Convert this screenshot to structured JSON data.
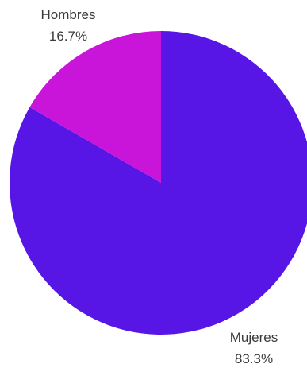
{
  "chart_data": {
    "type": "pie",
    "title": "",
    "slices": [
      {
        "label": "Mujeres",
        "value": 83.3,
        "display": "83.3%",
        "color": "#5716e6"
      },
      {
        "label": "Hombres",
        "value": 16.7,
        "display": "16.7%",
        "color": "#c914d9"
      }
    ],
    "legend": "none",
    "labels_outside": true
  }
}
